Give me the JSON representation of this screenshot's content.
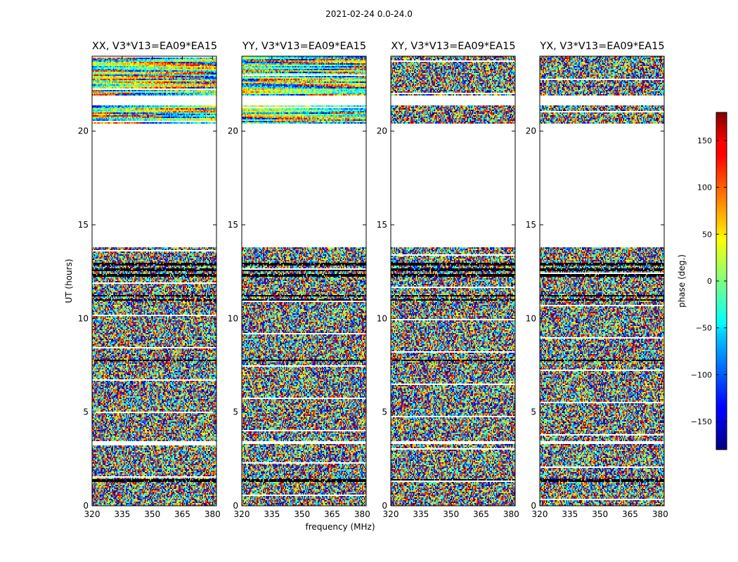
{
  "suptitle": "2021-02-24 0.0-24.0",
  "panels": [
    {
      "title": "XX, V3*V13=EA09*EA15",
      "pol": "XX"
    },
    {
      "title": "YY, V3*V13=EA09*EA15",
      "pol": "YY"
    },
    {
      "title": "XY, V3*V13=EA09*EA15",
      "pol": "XY"
    },
    {
      "title": "YX, V3*V13=EA09*EA15",
      "pol": "YX"
    }
  ],
  "axes": {
    "ylabel": "UT (hours)",
    "xlabel": "frequency (MHz)",
    "xlim": [
      320,
      382
    ],
    "ylim": [
      0,
      24
    ],
    "xticks": [
      320,
      335,
      350,
      365,
      380
    ],
    "xtick_labels": [
      "320",
      "335",
      "350",
      "365",
      "380"
    ],
    "yticks": [
      0,
      5,
      10,
      15,
      20
    ],
    "ytick_labels": [
      "0",
      "5",
      "10",
      "15",
      "20"
    ]
  },
  "colorbar": {
    "label": "phase (deg.)",
    "range": [
      -180,
      180
    ],
    "ticks": [
      150,
      100,
      50,
      0,
      -50,
      -100,
      -150
    ],
    "tick_labels": [
      "150",
      "100",
      "50",
      "0",
      "−50",
      "−100",
      "−150"
    ],
    "colormap": "jet"
  },
  "chart_data": {
    "type": "heatmap",
    "title": "2021-02-24 0.0-24.0",
    "xlabel": "frequency (MHz)",
    "ylabel": "UT (hours)",
    "xlim": [
      320,
      382
    ],
    "ylim": [
      0,
      24
    ],
    "value_label": "phase (deg.)",
    "value_range": [
      -180,
      180
    ],
    "series": [
      {
        "name": "XX, V3*V13=EA09*EA15"
      },
      {
        "name": "YY, V3*V13=EA09*EA15"
      },
      {
        "name": "XY, V3*V13=EA09*EA15"
      },
      {
        "name": "YX, V3*V13=EA09*EA15"
      }
    ],
    "blank_ut_ranges": [
      [
        13.8,
        20.4
      ],
      [
        21.4,
        21.9
      ],
      [
        3.3,
        3.45
      ]
    ],
    "flagged_ut_rows": [
      11.0,
      11.2,
      7.75,
      1.35,
      12.3,
      12.6,
      12.9
    ]
  }
}
